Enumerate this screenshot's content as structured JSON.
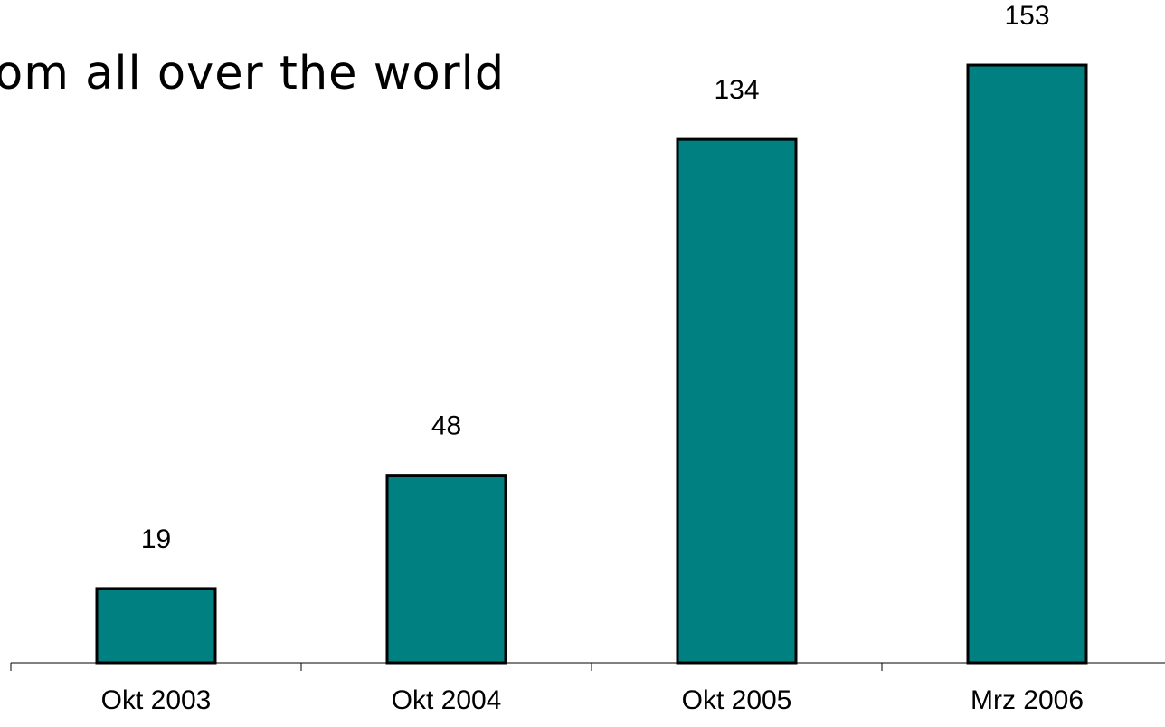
{
  "chart_data": {
    "type": "bar",
    "title": "om all over the world",
    "categories": [
      "Okt 2003",
      "Okt 2004",
      "Okt 2005",
      "Mrz 2006"
    ],
    "values": [
      19,
      48,
      134,
      153
    ],
    "ylim": [
      0,
      170
    ],
    "grid": false,
    "legend": "none",
    "xlabel": "",
    "ylabel": "",
    "bar_color": "#008080",
    "bar_edge_color": "#000000"
  }
}
